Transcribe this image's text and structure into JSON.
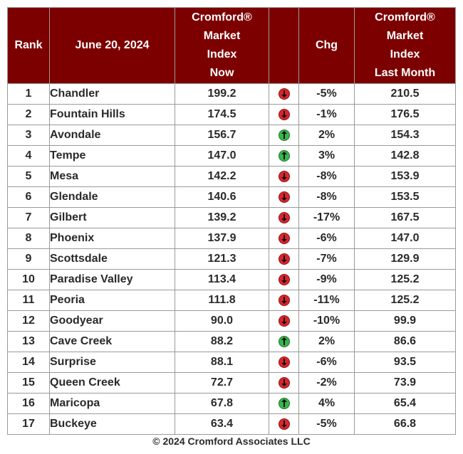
{
  "header": {
    "rank": "Rank",
    "date": "June 20, 2024",
    "now_lines": [
      "Cromford®",
      "Market",
      "Index",
      "Now"
    ],
    "chg": "Chg",
    "last_lines": [
      "Cromford®",
      "Market",
      "Index",
      "Last Month"
    ]
  },
  "rows": [
    {
      "rank": "1",
      "city": "Chandler",
      "now": "199.2",
      "dir": "down",
      "chg": "-5%",
      "last": "210.5"
    },
    {
      "rank": "2",
      "city": "Fountain Hills",
      "now": "174.5",
      "dir": "down",
      "chg": "-1%",
      "last": "176.5"
    },
    {
      "rank": "3",
      "city": "Avondale",
      "now": "156.7",
      "dir": "up",
      "chg": "2%",
      "last": "154.3"
    },
    {
      "rank": "4",
      "city": "Tempe",
      "now": "147.0",
      "dir": "up",
      "chg": "3%",
      "last": "142.8"
    },
    {
      "rank": "5",
      "city": "Mesa",
      "now": "142.2",
      "dir": "down",
      "chg": "-8%",
      "last": "153.9"
    },
    {
      "rank": "6",
      "city": "Glendale",
      "now": "140.6",
      "dir": "down",
      "chg": "-8%",
      "last": "153.5"
    },
    {
      "rank": "7",
      "city": "Gilbert",
      "now": "139.2",
      "dir": "down",
      "chg": "-17%",
      "last": "167.5"
    },
    {
      "rank": "8",
      "city": "Phoenix",
      "now": "137.9",
      "dir": "down",
      "chg": "-6%",
      "last": "147.0"
    },
    {
      "rank": "9",
      "city": "Scottsdale",
      "now": "121.3",
      "dir": "down",
      "chg": "-7%",
      "last": "129.9"
    },
    {
      "rank": "10",
      "city": "Paradise Valley",
      "now": "113.4",
      "dir": "down",
      "chg": "-9%",
      "last": "125.2"
    },
    {
      "rank": "11",
      "city": "Peoria",
      "now": "111.8",
      "dir": "down",
      "chg": "-11%",
      "last": "125.2"
    },
    {
      "rank": "12",
      "city": "Goodyear",
      "now": "90.0",
      "dir": "down",
      "chg": "-10%",
      "last": "99.9"
    },
    {
      "rank": "13",
      "city": "Cave Creek",
      "now": "88.2",
      "dir": "up",
      "chg": "2%",
      "last": "86.6"
    },
    {
      "rank": "14",
      "city": "Surprise",
      "now": "88.1",
      "dir": "down",
      "chg": "-6%",
      "last": "93.5"
    },
    {
      "rank": "15",
      "city": "Queen Creek",
      "now": "72.7",
      "dir": "down",
      "chg": "-2%",
      "last": "73.9"
    },
    {
      "rank": "16",
      "city": "Maricopa",
      "now": "67.8",
      "dir": "up",
      "chg": "4%",
      "last": "65.4"
    },
    {
      "rank": "17",
      "city": "Buckeye",
      "now": "63.4",
      "dir": "down",
      "chg": "-5%",
      "last": "66.8"
    }
  ],
  "indicator_icons": {
    "up": "green-up-arrow-icon",
    "down": "red-down-arrow-icon"
  },
  "colors": {
    "header_bg": "#7d0000",
    "up": "#39b54a",
    "down": "#d9262a"
  },
  "footer": "© 2024 Cromford Associates LLC"
}
